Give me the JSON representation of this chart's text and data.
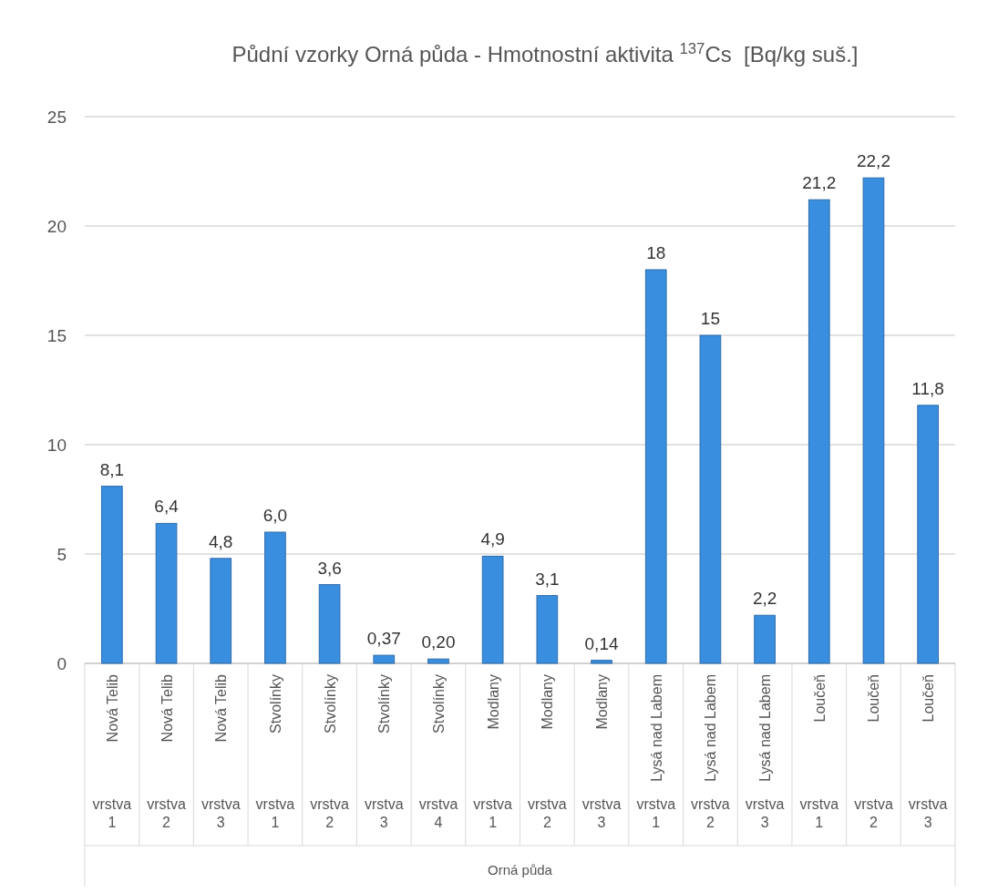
{
  "chart_data": {
    "type": "bar",
    "title": "Půdní vzorky Orná půda - Hmotnostní aktivita $^{137}$Cs  [Bq/kg suš.]",
    "categories": [
      "Nová Telib",
      "Nová Telib",
      "Nová Telib",
      "Stvolínky",
      "Stvolínky",
      "Stvolínky",
      "Stvolínky",
      "Modlany",
      "Modlany",
      "Modlany",
      "Lysá nad Labem",
      "Lysá nad Labem",
      "Lysá nad Labem",
      "Loučeň",
      "Loučeň",
      "Loučeň"
    ],
    "annotations": [
      "vrstva 1",
      "vrstva 2",
      "vrstva 3",
      "vrstva 1",
      "vrstva 2",
      "vrstva 3",
      "vrstva 4",
      "vrstva 1",
      "vrstva 2",
      "vrstva 3",
      "vrstva 1",
      "vrstva 2",
      "vrstva 3",
      "vrstva 1",
      "vrstva 2",
      "vrstva 3",
      "Orná půda"
    ],
    "values": [
      8.1,
      6.4,
      4.8,
      6.0,
      3.6,
      0.37,
      0.2,
      4.9,
      3.1,
      0.14,
      18,
      15,
      2.2,
      21.2,
      22.2,
      11.8
    ],
    "value_labels": [
      "8,1",
      "6,4",
      "4,8",
      "6,0",
      "3,6",
      "0,37",
      "0,20",
      "4,9",
      "3,1",
      "0,14",
      "18",
      "15",
      "2,2",
      "21,2",
      "22,2",
      "11,8"
    ],
    "color": "#3a8ee0",
    "ylim": [
      0,
      25
    ],
    "yticks": [
      0,
      5,
      10,
      15,
      20,
      25
    ],
    "grid": "y"
  }
}
